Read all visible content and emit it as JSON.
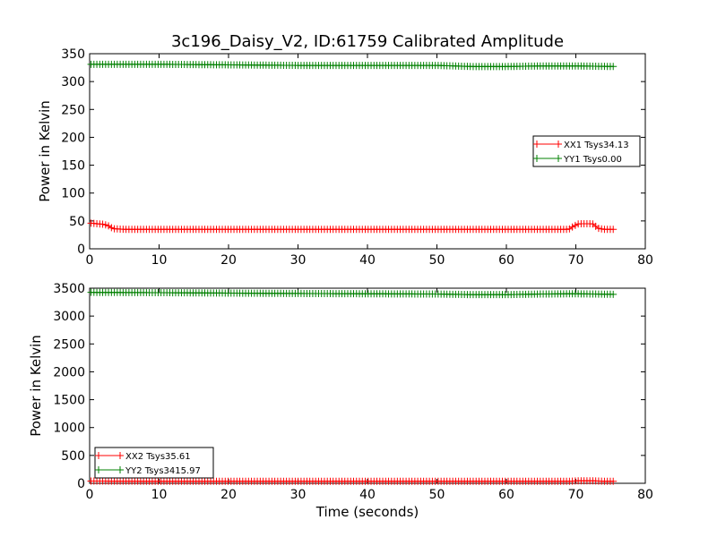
{
  "figure": {
    "title": "3c196_Daisy_V2, ID:61759 Calibrated Amplitude"
  },
  "chart_data": [
    {
      "type": "line",
      "title": "3c196_Daisy_V2, ID:61759 Calibrated Amplitude",
      "xlabel": "",
      "ylabel": "Power in Kelvin",
      "xlim": [
        0,
        80
      ],
      "ylim": [
        0,
        350
      ],
      "xticks": [
        "0",
        "10",
        "20",
        "30",
        "40",
        "50",
        "60",
        "70",
        "80"
      ],
      "yticks": [
        "0",
        "50",
        "100",
        "150",
        "200",
        "250",
        "300",
        "350"
      ],
      "legend_position": "center-right",
      "grid": false,
      "series": [
        {
          "name": "XX1 Tsys34.13",
          "color": "#ff0000",
          "marker": "plus",
          "points": [
            [
              0.2,
              46
            ],
            [
              1,
              45
            ],
            [
              2,
              44
            ],
            [
              2.6,
              42
            ],
            [
              3.4,
              36
            ],
            [
              5,
              35
            ],
            [
              10,
              35
            ],
            [
              15,
              35
            ],
            [
              20,
              35
            ],
            [
              25,
              35
            ],
            [
              30,
              35
            ],
            [
              35,
              35
            ],
            [
              40,
              35
            ],
            [
              45,
              35
            ],
            [
              50,
              35
            ],
            [
              55,
              35
            ],
            [
              60,
              35
            ],
            [
              65,
              35
            ],
            [
              69,
              35
            ],
            [
              69.6,
              40
            ],
            [
              70.4,
              45
            ],
            [
              71.5,
              45
            ],
            [
              72.4,
              45
            ],
            [
              73.2,
              37
            ],
            [
              74,
              35
            ],
            [
              75.5,
              35
            ]
          ]
        },
        {
          "name": "YY1 Tsys0.00",
          "color": "#008000",
          "marker": "plus",
          "points": [
            [
              0.2,
              331
            ],
            [
              10,
              331
            ],
            [
              20,
              330
            ],
            [
              30,
              329
            ],
            [
              40,
              329
            ],
            [
              50,
              329
            ],
            [
              55,
              327
            ],
            [
              60,
              327
            ],
            [
              65,
              328
            ],
            [
              70,
              328
            ],
            [
              75.5,
              327
            ]
          ]
        }
      ]
    },
    {
      "type": "line",
      "title": "",
      "xlabel": "Time (seconds)",
      "ylabel": "Power in Kelvin",
      "xlim": [
        0,
        80
      ],
      "ylim": [
        0,
        3500
      ],
      "xticks": [
        "0",
        "10",
        "20",
        "30",
        "40",
        "50",
        "60",
        "70",
        "80"
      ],
      "yticks": [
        "0",
        "500",
        "1000",
        "1500",
        "2000",
        "2500",
        "3000",
        "3500"
      ],
      "legend_position": "lower-left",
      "grid": false,
      "series": [
        {
          "name": "XX2 Tsys35.61",
          "color": "#ff0000",
          "marker": "plus",
          "points": [
            [
              0.2,
              40
            ],
            [
              10,
              36
            ],
            [
              20,
              36
            ],
            [
              30,
              36
            ],
            [
              40,
              36
            ],
            [
              50,
              36
            ],
            [
              60,
              36
            ],
            [
              69,
              36
            ],
            [
              70.5,
              45
            ],
            [
              72.5,
              45
            ],
            [
              74,
              36
            ],
            [
              75.5,
              36
            ]
          ]
        },
        {
          "name": "YY2 Tsys3415.97",
          "color": "#008000",
          "marker": "plus",
          "points": [
            [
              0.2,
              3425
            ],
            [
              10,
              3420
            ],
            [
              20,
              3412
            ],
            [
              30,
              3405
            ],
            [
              40,
              3400
            ],
            [
              50,
              3395
            ],
            [
              55,
              3385
            ],
            [
              60,
              3385
            ],
            [
              65,
              3395
            ],
            [
              70,
              3400
            ],
            [
              75.5,
              3390
            ]
          ]
        }
      ]
    }
  ]
}
